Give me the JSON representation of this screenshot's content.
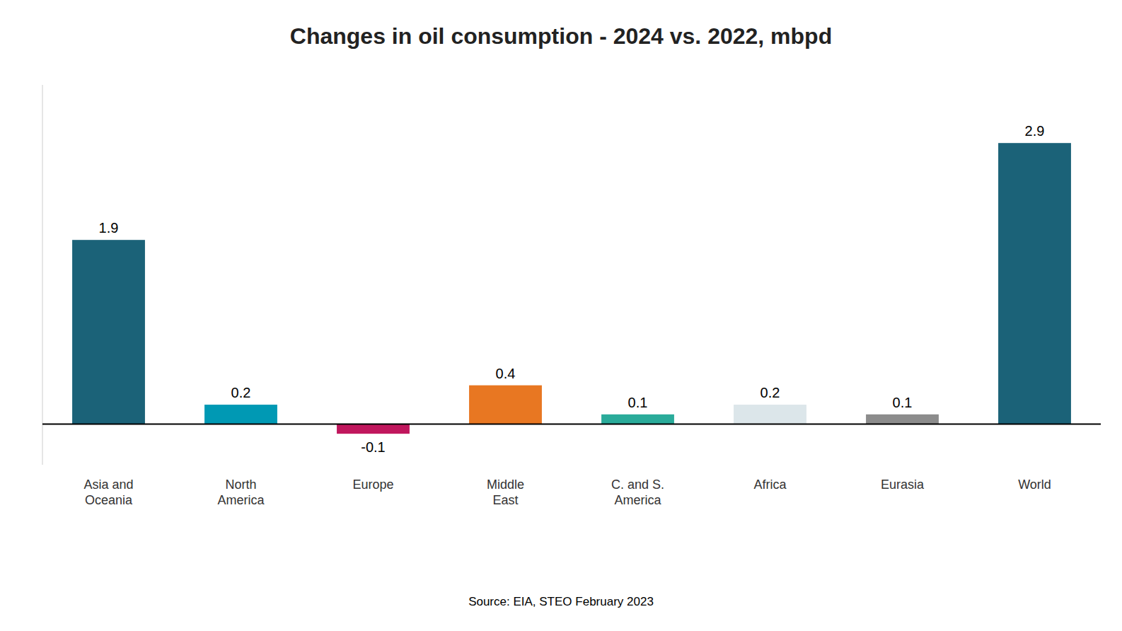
{
  "chart_data": {
    "type": "bar",
    "title": "Changes in oil consumption - 2024 vs. 2022, mbpd",
    "categories": [
      "Asia and\nOceania",
      "North\nAmerica",
      "Europe",
      "Middle\nEast",
      "C. and S.\nAmerica",
      "Africa",
      "Eurasia",
      "World"
    ],
    "values": [
      1.9,
      0.2,
      -0.1,
      0.4,
      0.1,
      0.2,
      0.1,
      2.9
    ],
    "colors": [
      "#1b6278",
      "#0099b4",
      "#c0175d",
      "#e87722",
      "#2aab9a",
      "#dce6ea",
      "#8c8c8c",
      "#1b6278"
    ],
    "ylim": [
      -0.42,
      3.5
    ],
    "grid": false,
    "tick_labels": "x",
    "data_labels": true,
    "annotations": [
      "Source: EIA, STEO February 2023"
    ]
  }
}
